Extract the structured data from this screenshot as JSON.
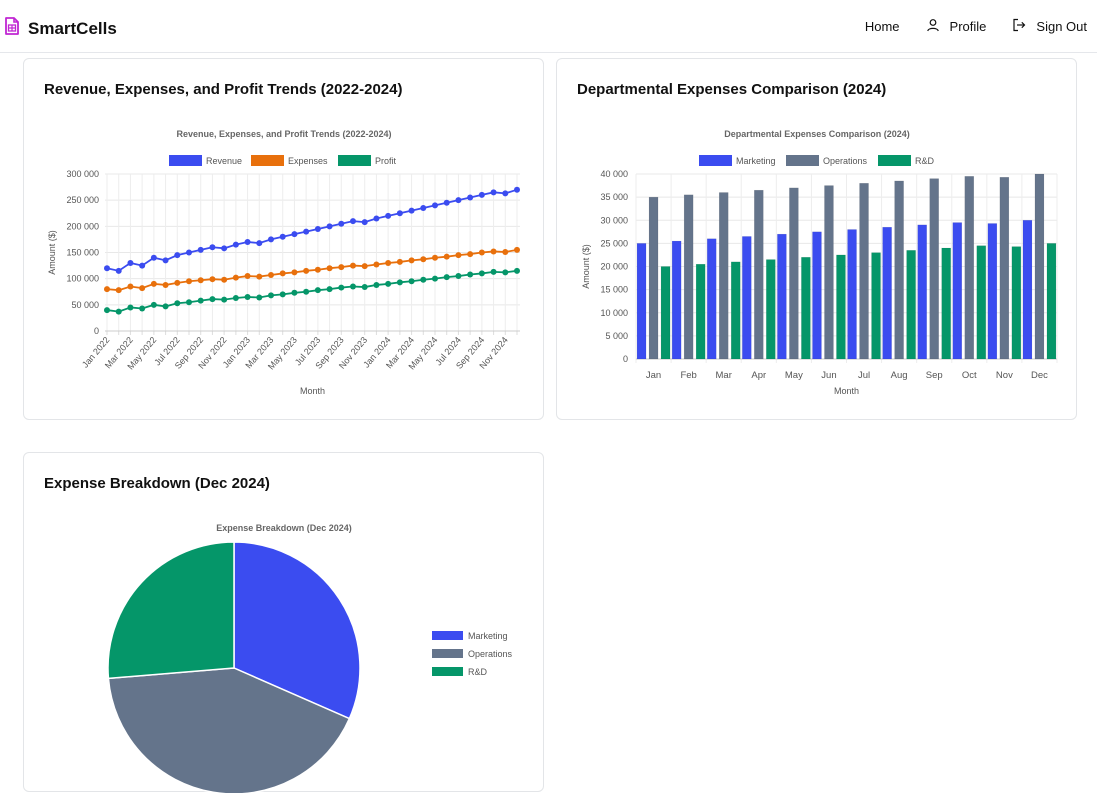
{
  "app": {
    "brand": "SmartCells",
    "nav": {
      "home": "Home",
      "profile": "Profile",
      "sign_out": "Sign Out"
    }
  },
  "colors": {
    "brand": "#c026d3",
    "revenue": "#3b4cf0",
    "expenses": "#e8700c",
    "profit": "#059669",
    "marketing": "#3b4cf0",
    "operations": "#64748b",
    "rnd": "#059669"
  },
  "cards": {
    "trends_title": "Revenue, Expenses, and Profit Trends (2022-2024)",
    "departments_title": "Departmental Expenses Comparison (2024)",
    "breakdown_title": "Expense Breakdown (Dec 2024)"
  },
  "chart_data": [
    {
      "type": "line",
      "title": "Revenue, Expenses, and Profit Trends (2022-2024)",
      "xlabel": "Month",
      "ylabel": "Amount ($)",
      "ylim": [
        0,
        300000
      ],
      "yticks": [
        "0",
        "50 000",
        "100 000",
        "150 000",
        "200 000",
        "250 000",
        "300 000"
      ],
      "x_tick_labels": [
        "Jan 2022",
        "Mar 2022",
        "May 2022",
        "Jul 2022",
        "Sep 2022",
        "Nov 2022",
        "Jan 2023",
        "Mar 2023",
        "May 2023",
        "Jul 2023",
        "Sep 2023",
        "Nov 2023",
        "Jan 2024",
        "Mar 2024",
        "May 2024",
        "Jul 2024",
        "Sep 2024",
        "Nov 2024"
      ],
      "series": [
        {
          "name": "Revenue",
          "values": [
            120000,
            115000,
            130000,
            125000,
            140000,
            135000,
            145000,
            150000,
            155000,
            160000,
            158000,
            165000,
            170000,
            168000,
            175000,
            180000,
            185000,
            190000,
            195000,
            200000,
            205000,
            210000,
            208000,
            215000,
            220000,
            225000,
            230000,
            235000,
            240000,
            245000,
            250000,
            255000,
            260000,
            265000,
            263000,
            270000
          ]
        },
        {
          "name": "Expenses",
          "values": [
            80000,
            78000,
            85000,
            82000,
            90000,
            88000,
            92000,
            95000,
            97000,
            99000,
            98000,
            102000,
            105000,
            104000,
            107000,
            110000,
            112000,
            115000,
            117000,
            120000,
            122000,
            125000,
            124000,
            127000,
            130000,
            132000,
            135000,
            137000,
            140000,
            142000,
            145000,
            147000,
            150000,
            152000,
            151000,
            155000
          ]
        },
        {
          "name": "Profit",
          "values": [
            40000,
            37000,
            45000,
            43000,
            50000,
            47000,
            53000,
            55000,
            58000,
            61000,
            60000,
            63000,
            65000,
            64000,
            68000,
            70000,
            73000,
            75000,
            78000,
            80000,
            83000,
            85000,
            84000,
            88000,
            90000,
            93000,
            95000,
            98000,
            100000,
            103000,
            105000,
            108000,
            110000,
            113000,
            112000,
            115000
          ]
        }
      ]
    },
    {
      "type": "bar",
      "title": "Departmental Expenses Comparison (2024)",
      "xlabel": "Month",
      "ylabel": "Amount ($)",
      "ylim": [
        0,
        40000
      ],
      "yticks": [
        "0",
        "5 000",
        "10 000",
        "15 000",
        "20 000",
        "25 000",
        "30 000",
        "35 000",
        "40 000"
      ],
      "categories": [
        "Jan",
        "Feb",
        "Mar",
        "Apr",
        "May",
        "Jun",
        "Jul",
        "Aug",
        "Sep",
        "Oct",
        "Nov",
        "Dec"
      ],
      "series": [
        {
          "name": "Marketing",
          "values": [
            25000,
            25500,
            26000,
            26500,
            27000,
            27500,
            28000,
            28500,
            29000,
            29500,
            29300,
            30000
          ]
        },
        {
          "name": "Operations",
          "values": [
            35000,
            35500,
            36000,
            36500,
            37000,
            37500,
            38000,
            38500,
            39000,
            39500,
            39300,
            40000
          ]
        },
        {
          "name": "R&D",
          "values": [
            20000,
            20500,
            21000,
            21500,
            22000,
            22500,
            23000,
            23500,
            24000,
            24500,
            24300,
            25000
          ]
        }
      ]
    },
    {
      "type": "pie",
      "title": "Expense Breakdown (Dec 2024)",
      "legend_position": "right",
      "categories": [
        "Marketing",
        "Operations",
        "R&D"
      ],
      "values": [
        30000,
        40000,
        25000
      ]
    }
  ]
}
